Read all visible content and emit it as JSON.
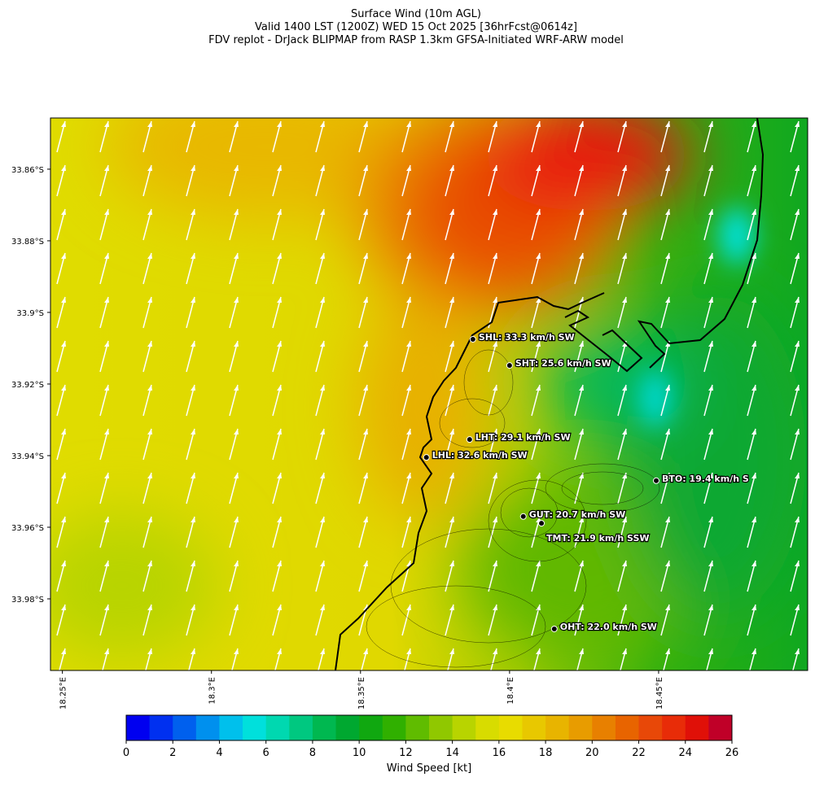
{
  "title_lines": [
    "Surface Wind (10m AGL)",
    "Valid 1400 LST (1200Z) WED 15 Oct 2025 [36hrFcst@0614z]",
    "FDV replot - DrJack BLIPMAP from RASP 1.3km GFSA-Initiated WRF-ARW model"
  ],
  "map": {
    "lonlim": [
      18.246,
      18.5
    ],
    "latlim": [
      -34.0,
      -33.8457
    ],
    "lat_ticks": [
      {
        "value": -33.86,
        "label": "33.86°S"
      },
      {
        "value": -33.88,
        "label": "33.88°S"
      },
      {
        "value": -33.9,
        "label": "33.9°S"
      },
      {
        "value": -33.92,
        "label": "33.92°S"
      },
      {
        "value": -33.94,
        "label": "33.94°S"
      },
      {
        "value": -33.96,
        "label": "33.96°S"
      },
      {
        "value": -33.98,
        "label": "33.98°S"
      }
    ],
    "lon_ticks": [
      {
        "value": 18.25,
        "label": "18.25°E"
      },
      {
        "value": 18.3,
        "label": "18.3°E"
      },
      {
        "value": 18.35,
        "label": "18.35°E"
      },
      {
        "value": 18.4,
        "label": "18.4°E"
      },
      {
        "value": 18.45,
        "label": "18.45°E"
      }
    ],
    "stations": [
      {
        "label": "SHL: 33.3 km/h SW",
        "lon": 18.3877,
        "lat": -33.9075
      },
      {
        "label": "SHT: 25.6 km/h SW",
        "lon": 18.4,
        "lat": -33.9148
      },
      {
        "label": "LHT: 29.1 km/h SW",
        "lon": 18.3866,
        "lat": -33.9355
      },
      {
        "label": "LHL: 32.6 km/h SW",
        "lon": 18.3721,
        "lat": -33.9405
      },
      {
        "label": "BTO: 19.4 km/h S",
        "lon": 18.4492,
        "lat": -33.947
      },
      {
        "label": "GUT: 20.7 km/h SW",
        "lon": 18.4046,
        "lat": -33.957
      },
      {
        "label": "TMT: 21.9 km/h SSW",
        "lon": 18.4107,
        "lat": -33.9589
      },
      {
        "label": "OHT: 22.0 km/h SW",
        "lon": 18.415,
        "lat": -33.9884
      }
    ]
  },
  "colorbar": {
    "label": "Wind Speed [kt]",
    "lim": [
      0,
      26
    ],
    "ticks": [
      0,
      2,
      4,
      6,
      8,
      10,
      12,
      14,
      16,
      18,
      20,
      22,
      24,
      26
    ],
    "colors": [
      "#0000f0",
      "#0030f0",
      "#0060ee",
      "#0090ee",
      "#00c0ec",
      "#00e0dc",
      "#00d8b0",
      "#00c880",
      "#00b850",
      "#00a830",
      "#10a810",
      "#30b000",
      "#60bc00",
      "#90c800",
      "#b8d400",
      "#d8dc00",
      "#e8dc00",
      "#e8c800",
      "#e8b400",
      "#e89c00",
      "#e88000",
      "#e86400",
      "#e84808",
      "#e82c08",
      "#e01008",
      "#c00028"
    ]
  }
}
